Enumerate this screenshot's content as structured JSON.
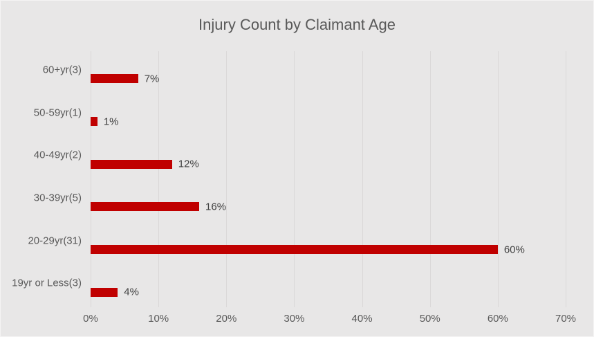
{
  "colors": {
    "background": "#E8E7E7",
    "bar": "#C00000",
    "gridline": "#DAD8D8",
    "title_text": "#595959",
    "axis_text": "#595959",
    "value_text": "#404040"
  },
  "chart_data": {
    "type": "bar",
    "orientation": "horizontal",
    "title": "Injury Count by Claimant Age",
    "categories": [
      "60+yr(3)",
      "50-59yr(1)",
      "40-49yr(2)",
      "30-39yr(5)",
      "20-29yr(31)",
      "19yr or Less(3)"
    ],
    "values": [
      7,
      1,
      12,
      16,
      60,
      4
    ],
    "value_labels": [
      "7%",
      "1%",
      "12%",
      "16%",
      "60%",
      "4%"
    ],
    "claim_counts": [
      3,
      1,
      2,
      5,
      31,
      3
    ],
    "x_ticks": [
      "0%",
      "10%",
      "20%",
      "30%",
      "40%",
      "50%",
      "60%",
      "70%"
    ],
    "xlim": [
      0,
      70
    ],
    "grid": "vertical-only",
    "legend": "none"
  }
}
